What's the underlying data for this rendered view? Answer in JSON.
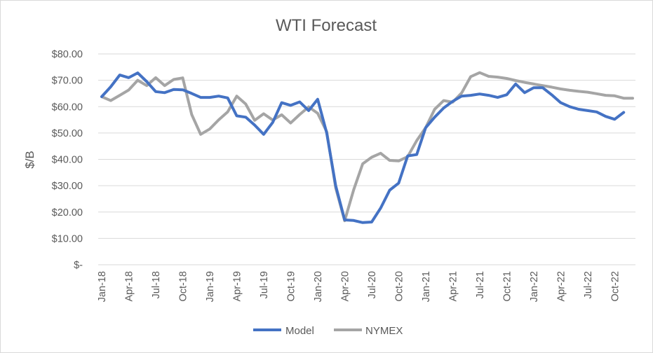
{
  "chart_data": {
    "type": "line",
    "title": "WTI Forecast",
    "xlabel": "",
    "ylabel": "$/B",
    "ylim": [
      0,
      80
    ],
    "y_ticks": [
      0,
      10,
      20,
      30,
      40,
      50,
      60,
      70,
      80
    ],
    "y_tick_labels": [
      "$-",
      "$10.00",
      "$20.00",
      "$30.00",
      "$40.00",
      "$50.00",
      "$60.00",
      "$70.00",
      "$80.00"
    ],
    "x_tick_labels": [
      "Jan-18",
      "Apr-18",
      "Jul-18",
      "Oct-18",
      "Jan-19",
      "Apr-19",
      "Jul-19",
      "Oct-19",
      "Jan-20",
      "Apr-20",
      "Jul-20",
      "Oct-20",
      "Jan-21",
      "Apr-21",
      "Jul-21",
      "Oct-21",
      "Jan-22",
      "Apr-22",
      "Jul-22",
      "Oct-22"
    ],
    "x_tick_step": 3,
    "grid": true,
    "legend_position": "bottom",
    "series": [
      {
        "name": "Model",
        "color": "#4472c4",
        "values": [
          63.8,
          67.5,
          72.0,
          71.0,
          72.8,
          69.5,
          65.7,
          65.3,
          66.5,
          66.4,
          65.0,
          63.5,
          63.5,
          64.0,
          63.3,
          56.5,
          56.0,
          53.0,
          49.5,
          54.0,
          61.5,
          60.5,
          61.8,
          58.5,
          62.8,
          50.0,
          30.0,
          17.0,
          16.8,
          16.0,
          16.2,
          21.5,
          28.3,
          31.0,
          41.3,
          41.8,
          52.0,
          56.0,
          59.5,
          62.0,
          64.0,
          64.3,
          64.8,
          64.3,
          63.5,
          64.5,
          68.6,
          65.3,
          67.2,
          67.2,
          64.5,
          61.5,
          60.0,
          59.0,
          58.5,
          58.0,
          56.3,
          55.2,
          57.8
        ]
      },
      {
        "name": "NYMEX",
        "color": "#a5a5a5",
        "values": [
          63.8,
          62.3,
          64.3,
          66.3,
          70.0,
          68.0,
          71.0,
          68.0,
          70.3,
          70.9,
          57.0,
          49.5,
          51.5,
          55.0,
          58.0,
          64.0,
          61.0,
          54.8,
          57.3,
          54.9,
          56.9,
          53.8,
          57.0,
          59.9,
          57.5,
          50.5,
          29.2,
          16.7,
          28.5,
          38.3,
          40.8,
          42.3,
          39.6,
          39.4,
          41.0,
          47.1,
          52.0,
          59.0,
          62.3,
          61.7,
          65.2,
          71.4,
          72.9,
          71.5,
          71.2,
          70.7,
          69.9,
          69.2,
          68.6,
          68.0,
          67.4,
          66.7,
          66.2,
          65.8,
          65.5,
          64.9,
          64.3,
          64.1,
          63.2,
          63.2
        ]
      }
    ]
  }
}
